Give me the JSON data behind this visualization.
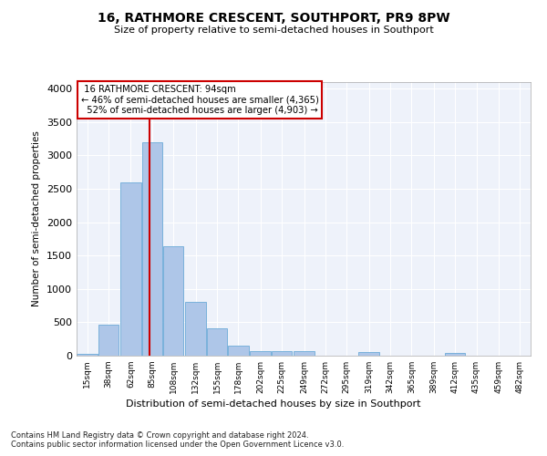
{
  "title": "16, RATHMORE CRESCENT, SOUTHPORT, PR9 8PW",
  "subtitle": "Size of property relative to semi-detached houses in Southport",
  "xlabel": "Distribution of semi-detached houses by size in Southport",
  "ylabel": "Number of semi-detached properties",
  "property_label": "16 RATHMORE CRESCENT: 94sqm",
  "pct_smaller": 46,
  "count_smaller": 4365,
  "pct_larger": 52,
  "count_larger": 4903,
  "bin_labels": [
    "15sqm",
    "38sqm",
    "62sqm",
    "85sqm",
    "108sqm",
    "132sqm",
    "155sqm",
    "178sqm",
    "202sqm",
    "225sqm",
    "249sqm",
    "272sqm",
    "295sqm",
    "319sqm",
    "342sqm",
    "365sqm",
    "389sqm",
    "412sqm",
    "435sqm",
    "459sqm",
    "482sqm"
  ],
  "bin_edges": [
    15,
    38,
    62,
    85,
    108,
    132,
    155,
    178,
    202,
    225,
    249,
    272,
    295,
    319,
    342,
    365,
    389,
    412,
    435,
    459,
    482
  ],
  "bar_heights": [
    30,
    460,
    2600,
    3200,
    1640,
    800,
    410,
    150,
    70,
    65,
    65,
    0,
    0,
    50,
    0,
    0,
    0,
    40,
    0,
    0,
    0
  ],
  "bar_color": "#aec6e8",
  "bar_edge_color": "#6baad8",
  "vline_x": 94,
  "vline_color": "#cc0000",
  "annotation_box_color": "#cc0000",
  "ylim": [
    0,
    4100
  ],
  "yticks": [
    0,
    500,
    1000,
    1500,
    2000,
    2500,
    3000,
    3500,
    4000
  ],
  "background_color": "#eef2fa",
  "footer_line1": "Contains HM Land Registry data © Crown copyright and database right 2024.",
  "footer_line2": "Contains public sector information licensed under the Open Government Licence v3.0."
}
